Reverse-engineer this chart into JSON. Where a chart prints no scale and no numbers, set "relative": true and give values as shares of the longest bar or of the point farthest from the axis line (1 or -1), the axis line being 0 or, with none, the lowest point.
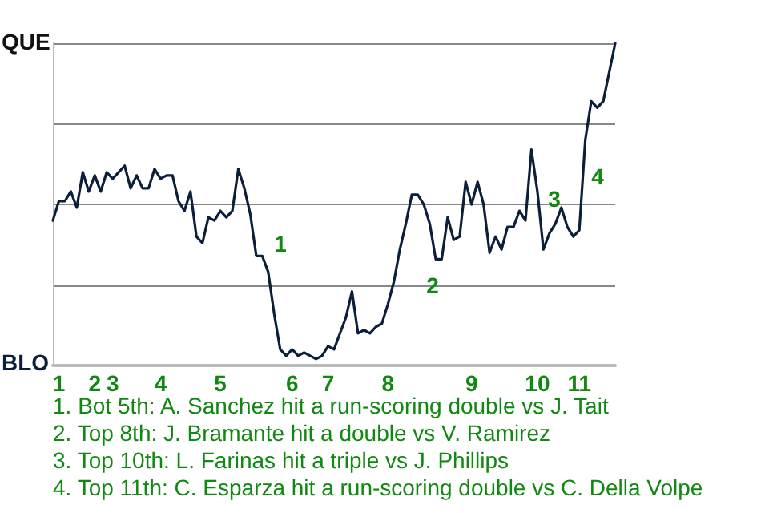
{
  "chart_data": {
    "type": "line",
    "categories": [
      null,
      "1",
      null,
      null,
      null,
      null,
      null,
      "2",
      null,
      null,
      "3",
      null,
      null,
      null,
      null,
      null,
      null,
      null,
      "4",
      null,
      null,
      null,
      null,
      null,
      null,
      null,
      null,
      null,
      "5",
      null,
      null,
      null,
      null,
      null,
      null,
      null,
      null,
      null,
      null,
      null,
      "6",
      null,
      null,
      null,
      null,
      null,
      "7",
      null,
      null,
      null,
      null,
      null,
      null,
      null,
      null,
      null,
      "8",
      null,
      null,
      null,
      null,
      null,
      null,
      null,
      null,
      null,
      null,
      null,
      null,
      null,
      "9",
      null,
      null,
      null,
      null,
      null,
      null,
      null,
      null,
      null,
      null,
      "10",
      null,
      null,
      null,
      null,
      null,
      null,
      "11",
      null,
      null,
      null,
      null,
      null,
      null
    ],
    "series": [
      {
        "color": "#0b1f3a",
        "values": [
          0.45,
          0.51,
          0.51,
          0.54,
          0.49,
          0.6,
          0.54,
          0.59,
          0.54,
          0.6,
          0.58,
          0.6,
          0.62,
          0.55,
          0.59,
          0.55,
          0.55,
          0.61,
          0.58,
          0.59,
          0.59,
          0.51,
          0.48,
          0.54,
          0.4,
          0.38,
          0.46,
          0.45,
          0.48,
          0.46,
          0.48,
          0.61,
          0.55,
          0.47,
          0.34,
          0.34,
          0.29,
          0.16,
          0.05,
          0.03,
          0.05,
          0.03,
          0.04,
          0.03,
          0.02,
          0.03,
          0.06,
          0.05,
          0.1,
          0.15,
          0.23,
          0.1,
          0.11,
          0.1,
          0.12,
          0.13,
          0.19,
          0.26,
          0.36,
          0.44,
          0.53,
          0.53,
          0.5,
          0.44,
          0.33,
          0.33,
          0.46,
          0.39,
          0.4,
          0.57,
          0.5,
          0.57,
          0.5,
          0.35,
          0.4,
          0.36,
          0.43,
          0.43,
          0.48,
          0.45,
          0.67,
          0.54,
          0.36,
          0.41,
          0.44,
          0.49,
          0.43,
          0.4,
          0.42,
          0.7,
          0.82,
          0.8,
          0.82,
          0.91,
          1.0
        ]
      }
    ],
    "relative": true,
    "grid": "y",
    "marker": "none",
    "line_style": "solid",
    "annotations": [
      "QUE",
      "BLO",
      "1",
      "2",
      "3",
      "4",
      "1. Bot 5th: A. Sanchez hit a run-scoring double vs J. Tait",
      "2. Top 8th: J. Bramante hit a double vs V. Ramirez",
      "3. Top 10th: L. Farinas hit a triple vs J. Phillips",
      "4. Top 11th: C. Esparza hit a run-scoring double vs C. Della Volpe"
    ]
  }
}
